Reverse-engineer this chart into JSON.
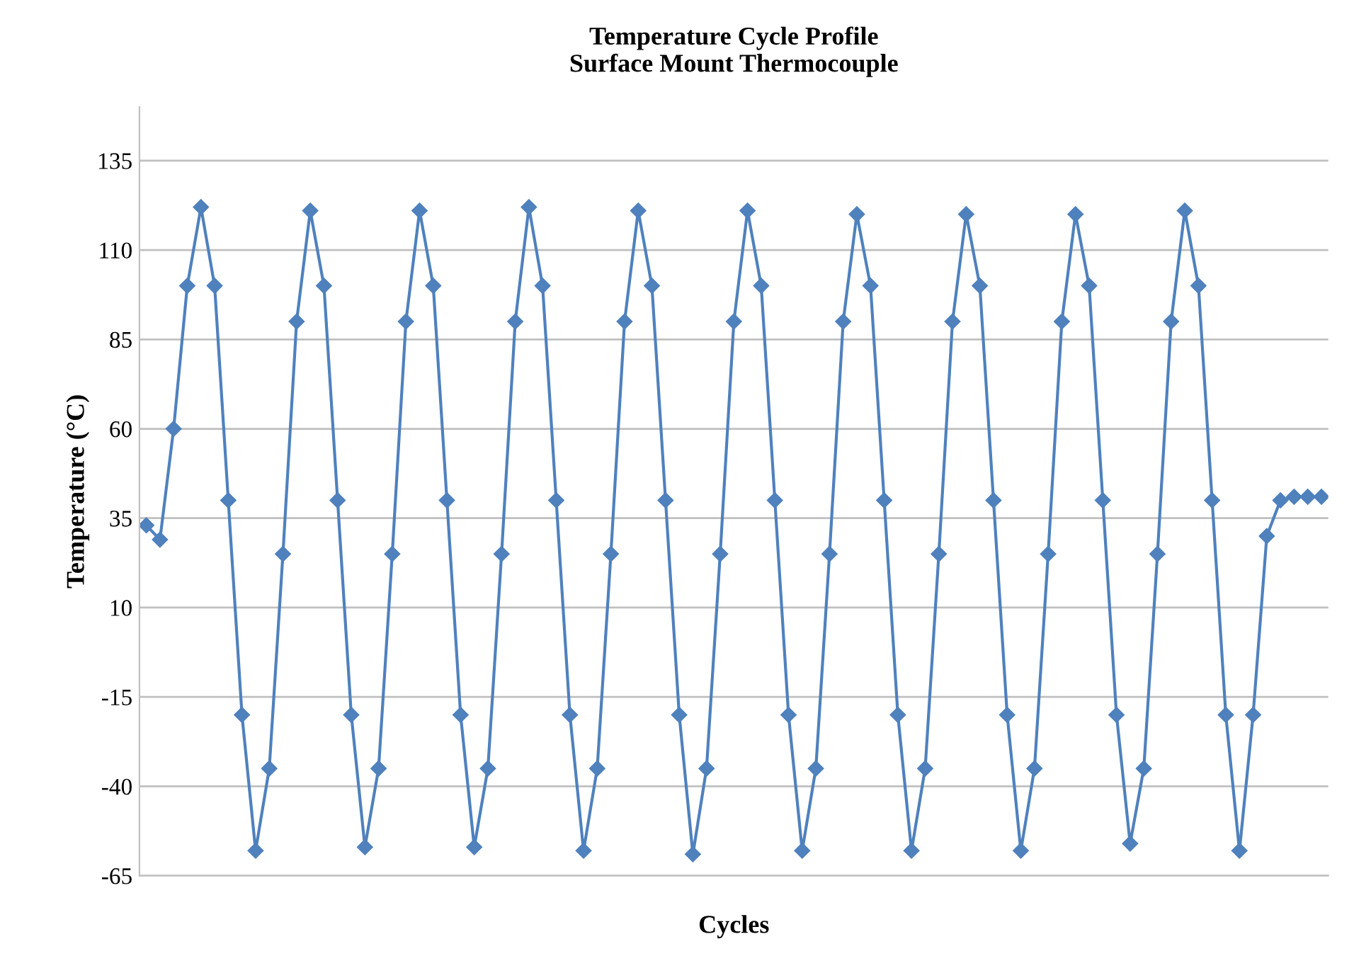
{
  "chart_data": {
    "type": "line",
    "title": "Temperature Cycle Profile\nSurface Mount Thermocouple",
    "xlabel": "Cycles",
    "ylabel": "Temperature (°C)",
    "categories": [
      null,
      null,
      null,
      null,
      null,
      null,
      null,
      null,
      null,
      null,
      null,
      null,
      null,
      null,
      null,
      null,
      null,
      null,
      null,
      null,
      null,
      null,
      null,
      null,
      null,
      null,
      null,
      null,
      null,
      null,
      null,
      null,
      null,
      null,
      null,
      null,
      null,
      null,
      null,
      null,
      null,
      null,
      null,
      null,
      null,
      null,
      null,
      null,
      null,
      null,
      null,
      null,
      null,
      null,
      null,
      null,
      null,
      null,
      null,
      null,
      null,
      null,
      null,
      null,
      null,
      null,
      null,
      null,
      null,
      null,
      null,
      null,
      null,
      null,
      null,
      null,
      null,
      null,
      null,
      null,
      null,
      null,
      null,
      null,
      null,
      null,
      null
    ],
    "series": [
      {
        "color": "#4f81bd",
        "values": [
          33,
          29,
          60,
          100,
          122,
          100,
          40,
          -20,
          -58,
          -35,
          25,
          90,
          121,
          100,
          40,
          -20,
          -57,
          -35,
          25,
          90,
          121,
          100,
          40,
          -20,
          -57,
          -35,
          25,
          90,
          122,
          100,
          40,
          -20,
          -58,
          -35,
          25,
          90,
          121,
          100,
          40,
          -20,
          -59,
          -35,
          25,
          90,
          121,
          100,
          40,
          -20,
          -58,
          -35,
          25,
          90,
          120,
          100,
          40,
          -20,
          -58,
          -35,
          25,
          90,
          120,
          100,
          40,
          -20,
          -58,
          -35,
          25,
          90,
          120,
          100,
          40,
          -20,
          -56,
          -35,
          25,
          90,
          121,
          100,
          40,
          -20,
          -58,
          -20,
          30,
          40,
          41,
          41,
          41
        ]
      }
    ],
    "ylim": [
      -65,
      150
    ],
    "yticks": [
      -65,
      -40,
      -15,
      10,
      35,
      60,
      85,
      110,
      135
    ],
    "grid": "y",
    "tick_labels": "y",
    "marker": "diamond",
    "line_style": "solid"
  }
}
